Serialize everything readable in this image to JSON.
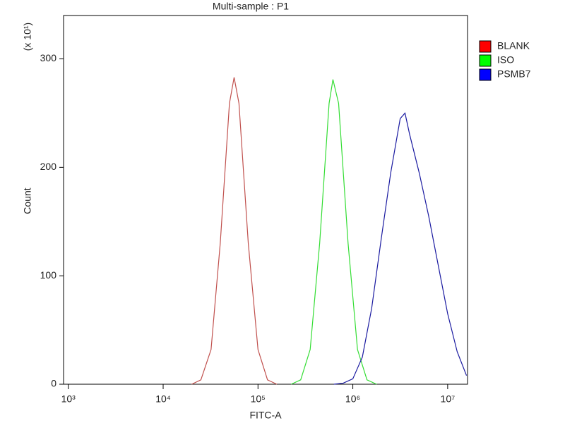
{
  "chart_data": {
    "type": "line",
    "title": "Multi-sample : P1",
    "x_label": "FITC-A",
    "y_label": "Count",
    "y_multiplier": "(x 10¹)",
    "xscale": "log",
    "xlim": [
      891,
      16200000
    ],
    "ylim": [
      0,
      340
    ],
    "xticks": [
      {
        "value": 1000,
        "label": "10³"
      },
      {
        "value": 10000,
        "label": "10⁴"
      },
      {
        "value": 100000,
        "label": "10⁵"
      },
      {
        "value": 1000000,
        "label": "10⁶"
      },
      {
        "value": 10000000,
        "label": "10⁷"
      }
    ],
    "yticks": [
      0,
      100,
      200,
      300
    ],
    "legend": "top-right",
    "series": [
      {
        "name": "BLANK",
        "color": "#c0504d",
        "legend_color": "#ff0000",
        "x": [
          20000,
          25000,
          32000,
          40000,
          50000,
          56000,
          63000,
          79000,
          100000,
          126000,
          158000
        ],
        "values": [
          0,
          4,
          32,
          130,
          259,
          283,
          259,
          130,
          32,
          4,
          0
        ]
      },
      {
        "name": "ISO",
        "color": "#33dd33",
        "legend_color": "#00ff00",
        "x": [
          224000,
          282000,
          355000,
          447000,
          562000,
          617000,
          708000,
          891000,
          1120000,
          1410000,
          1780000
        ],
        "values": [
          0,
          4,
          32,
          130,
          259,
          281,
          259,
          130,
          32,
          4,
          0
        ]
      },
      {
        "name": "PSMB7",
        "color": "#1a1aa0",
        "legend_color": "#0000ff",
        "x": [
          631000,
          794000,
          1000000,
          1260000,
          1580000,
          2000000,
          2510000,
          3160000,
          3550000,
          3980000,
          5010000,
          6310000,
          7940000,
          10000000,
          12600000,
          15800000
        ],
        "values": [
          0,
          1,
          5,
          25,
          70,
          135,
          195,
          245,
          250,
          230,
          195,
          155,
          110,
          65,
          30,
          8
        ]
      }
    ]
  }
}
